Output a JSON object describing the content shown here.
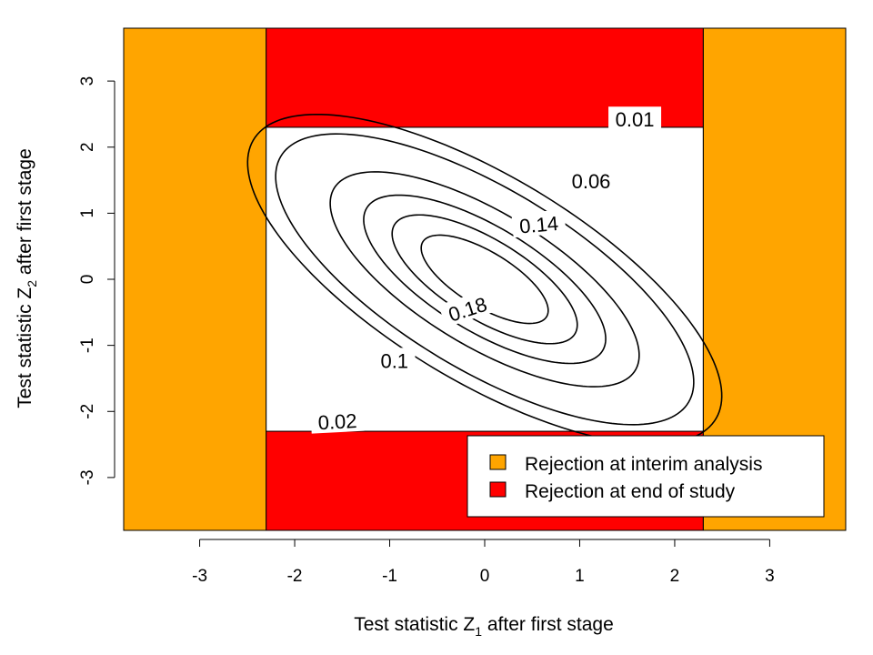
{
  "chart_data": {
    "type": "contour",
    "xlabel": {
      "prefix": "Test statistic Z",
      "sub": "1",
      "suffix": " after first stage"
    },
    "ylabel": {
      "prefix": "Test statistic Z",
      "sub": "2",
      "suffix": " after first stage"
    },
    "xlim": [
      -3.8,
      3.8
    ],
    "ylim": [
      -3.8,
      3.8
    ],
    "xticks": [
      -3,
      -2,
      -1,
      0,
      1,
      2,
      3
    ],
    "yticks": [
      -3,
      -2,
      -1,
      0,
      1,
      2,
      3
    ],
    "grid": false,
    "regions": [
      {
        "name": "Rejection at interim analysis",
        "color": "#FFA500",
        "condition": "|Z1| > 2.3"
      },
      {
        "name": "Rejection at end of study",
        "color": "#FF0000",
        "condition": "|Z1| <= 2.3 and |Z2| > 2.3"
      }
    ],
    "boundary": 2.3,
    "density": {
      "distribution": "bivariate normal",
      "mean": [
        0,
        0
      ],
      "sd": [
        1,
        1
      ],
      "correlation": 0.707
    },
    "contour_levels": [
      0.01,
      0.02,
      0.06,
      0.1,
      0.14,
      0.18
    ],
    "contour_labels": [
      {
        "level": "0.01",
        "x": 1.58,
        "y": 2.42,
        "rotate": 0
      },
      {
        "level": "0.06",
        "x": 1.12,
        "y": 1.49,
        "rotate": 0
      },
      {
        "level": "0.14",
        "x": 0.57,
        "y": 0.83,
        "rotate": -5
      },
      {
        "level": "0.18",
        "x": -0.18,
        "y": -0.45,
        "rotate": -18
      },
      {
        "level": "0.1",
        "x": -0.95,
        "y": -1.23,
        "rotate": 0
      },
      {
        "level": "0.02",
        "x": -1.55,
        "y": -2.15,
        "rotate": -3
      }
    ],
    "legend": {
      "position": "bottom-right",
      "entries": [
        {
          "label": "Rejection at interim analysis",
          "color": "#FFA500"
        },
        {
          "label": "Rejection at end of study",
          "color": "#FF0000"
        }
      ]
    }
  }
}
